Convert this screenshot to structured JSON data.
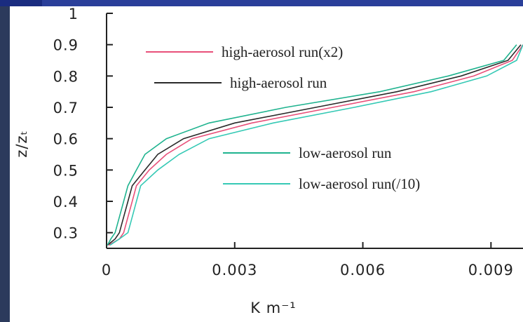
{
  "chart_data": {
    "type": "line",
    "xlabel": "K m⁻¹",
    "ylabel": "z/zₜ",
    "xlim": [
      0,
      0.00975
    ],
    "ylim": [
      0.25,
      1
    ],
    "xticks": [
      0,
      0.003,
      0.006,
      0.009
    ],
    "yticks": [
      0.3,
      0.4,
      0.5,
      0.6,
      0.7,
      0.8,
      0.9,
      1
    ],
    "series": [
      {
        "name": "high-aerosol run(x2)",
        "color": "#e8507a",
        "x": [
          5e-05,
          0.0003,
          0.0004,
          0.0005,
          0.0006,
          0.0007,
          0.001,
          0.0014,
          0.002,
          0.0034,
          0.0053,
          0.0072,
          0.0086,
          0.0095,
          0.00975
        ],
        "values": [
          0.26,
          0.28,
          0.3,
          0.35,
          0.4,
          0.45,
          0.5,
          0.55,
          0.6,
          0.65,
          0.7,
          0.75,
          0.8,
          0.85,
          0.9
        ]
      },
      {
        "name": "high-aerosol run",
        "color": "#2a2a2a",
        "x": [
          2e-05,
          0.0002,
          0.0003,
          0.0004,
          0.0005,
          0.0006,
          0.0009,
          0.0012,
          0.0018,
          0.003,
          0.0049,
          0.0068,
          0.0083,
          0.0094,
          0.0097
        ],
        "values": [
          0.26,
          0.28,
          0.3,
          0.35,
          0.4,
          0.45,
          0.5,
          0.55,
          0.6,
          0.65,
          0.7,
          0.75,
          0.8,
          0.85,
          0.9
        ]
      },
      {
        "name": "low-aerosol run",
        "color": "#1fb38f",
        "x": [
          2e-05,
          0.0001,
          0.0002,
          0.0003,
          0.0004,
          0.0005,
          0.0007,
          0.0009,
          0.0014,
          0.0024,
          0.0042,
          0.0064,
          0.008,
          0.0093,
          0.0096
        ],
        "values": [
          0.26,
          0.28,
          0.3,
          0.35,
          0.4,
          0.45,
          0.5,
          0.55,
          0.6,
          0.65,
          0.7,
          0.75,
          0.8,
          0.85,
          0.9
        ]
      },
      {
        "name": "low-aerosol run(/10)",
        "color": "#35c9b5",
        "x": [
          8e-05,
          0.0003,
          0.0005,
          0.0006,
          0.0007,
          0.0008,
          0.0012,
          0.0017,
          0.0024,
          0.0039,
          0.0058,
          0.0076,
          0.0089,
          0.0096,
          0.00975
        ],
        "values": [
          0.26,
          0.28,
          0.3,
          0.35,
          0.4,
          0.45,
          0.5,
          0.55,
          0.6,
          0.65,
          0.7,
          0.75,
          0.8,
          0.85,
          0.9
        ]
      }
    ]
  }
}
